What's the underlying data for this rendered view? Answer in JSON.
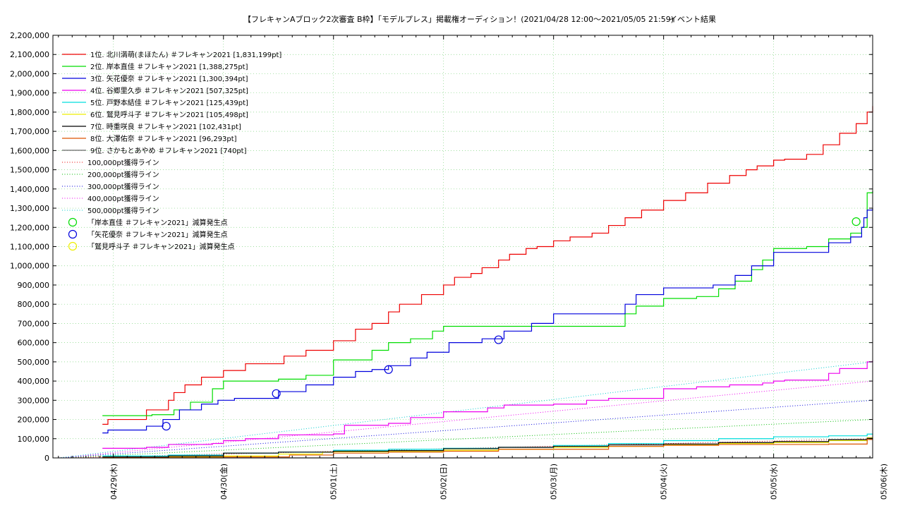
{
  "chart_data": {
    "type": "line",
    "title": "【フレキャンAブロック2次審査 B枠】「モデルプレス」掲載権オーディション！(2021/04/28 12:00〜2021/05/05 21:59)",
    "subtitle": "イベント結果",
    "xlabel": "",
    "ylabel": "",
    "ylim": [
      0,
      2200000
    ],
    "xlim": [
      -0.55,
      6.9
    ],
    "grid": true,
    "legend_position": "top-left",
    "x_ticks": [
      {
        "value": 0,
        "label": "04/29(木)"
      },
      {
        "value": 1,
        "label": "04/30(金)"
      },
      {
        "value": 2,
        "label": "05/01(土)"
      },
      {
        "value": 3,
        "label": "05/02(日)"
      },
      {
        "value": 4,
        "label": "05/03(月)"
      },
      {
        "value": 5,
        "label": "05/04(火)"
      },
      {
        "value": 6,
        "label": "05/05(水)"
      },
      {
        "value": 7,
        "label": "05/06(木)"
      }
    ],
    "y_ticks": [
      {
        "value": 0,
        "label": "0"
      },
      {
        "value": 100000,
        "label": "100,000"
      },
      {
        "value": 200000,
        "label": "200,000"
      },
      {
        "value": 300000,
        "label": "300,000"
      },
      {
        "value": 400000,
        "label": "400,000"
      },
      {
        "value": 500000,
        "label": "500,000"
      },
      {
        "value": 600000,
        "label": "600,000"
      },
      {
        "value": 700000,
        "label": "700,000"
      },
      {
        "value": 800000,
        "label": "800,000"
      },
      {
        "value": 900000,
        "label": "900,000"
      },
      {
        "value": 1000000,
        "label": "1,000,000"
      },
      {
        "value": 1100000,
        "label": "1,100,000"
      },
      {
        "value": 1200000,
        "label": "1,200,000"
      },
      {
        "value": 1300000,
        "label": "1,300,000"
      },
      {
        "value": 1400000,
        "label": "1,400,000"
      },
      {
        "value": 1500000,
        "label": "1,500,000"
      },
      {
        "value": 1600000,
        "label": "1,600,000"
      },
      {
        "value": 1700000,
        "label": "1,700,000"
      },
      {
        "value": 1800000,
        "label": "1,800,000"
      },
      {
        "value": 1900000,
        "label": "1,900,000"
      },
      {
        "value": 2000000,
        "label": "2,000,000"
      },
      {
        "value": 2100000,
        "label": "2,100,000"
      },
      {
        "value": 2200000,
        "label": "2,200,000"
      }
    ],
    "series": [
      {
        "name": "1位. 北川満萌(まほたん) ＃フレキャン2021 [1,831,199pt]",
        "color": "#ee0000",
        "style": "step",
        "x": [
          -0.1,
          -0.05,
          0.3,
          0.5,
          0.55,
          0.65,
          0.8,
          1.0,
          1.2,
          1.55,
          1.75,
          2.0,
          2.2,
          2.35,
          2.5,
          2.6,
          2.8,
          3.0,
          3.1,
          3.25,
          3.35,
          3.5,
          3.6,
          3.75,
          3.85,
          4.0,
          4.15,
          4.35,
          4.5,
          4.65,
          4.8,
          5.0,
          5.2,
          5.4,
          5.6,
          5.75,
          5.85,
          6.0,
          6.1,
          6.3,
          6.45,
          6.6,
          6.75,
          6.85,
          6.9
        ],
        "y": [
          175000,
          200000,
          250000,
          300000,
          340000,
          380000,
          420000,
          455000,
          490000,
          530000,
          560000,
          610000,
          670000,
          700000,
          760000,
          800000,
          850000,
          900000,
          940000,
          960000,
          990000,
          1030000,
          1060000,
          1090000,
          1100000,
          1130000,
          1150000,
          1170000,
          1210000,
          1250000,
          1290000,
          1340000,
          1380000,
          1430000,
          1470000,
          1500000,
          1520000,
          1550000,
          1555000,
          1580000,
          1630000,
          1690000,
          1740000,
          1800000,
          1831199
        ]
      },
      {
        "name": "2位. 岸本直佳 ＃フレキャン2021 [1,388,275pt]",
        "color": "#00dd00",
        "style": "step",
        "x": [
          -0.1,
          0.35,
          0.55,
          0.7,
          0.9,
          1.0,
          1.5,
          1.75,
          2.0,
          2.35,
          2.5,
          2.7,
          2.9,
          3.0,
          3.5,
          4.0,
          4.5,
          4.65,
          4.75,
          5.0,
          5.3,
          5.5,
          5.65,
          5.8,
          5.9,
          6.0,
          6.3,
          6.5,
          6.7,
          6.8,
          6.85,
          6.9
        ],
        "y": [
          220000,
          225000,
          250000,
          290000,
          360000,
          400000,
          410000,
          430000,
          510000,
          560000,
          600000,
          620000,
          660000,
          685000,
          685000,
          685000,
          685000,
          750000,
          790000,
          830000,
          840000,
          880000,
          920000,
          980000,
          1030000,
          1090000,
          1100000,
          1140000,
          1170000,
          1200000,
          1380000,
          1388275
        ]
      },
      {
        "name": "3位. 矢花優奈 ＃フレキャン2021 [1,300,394pt]",
        "color": "#0000dd",
        "style": "step",
        "x": [
          -0.1,
          -0.05,
          0.3,
          0.45,
          0.6,
          0.8,
          0.95,
          1.1,
          1.5,
          1.75,
          2.0,
          2.2,
          2.35,
          2.5,
          2.7,
          2.85,
          3.05,
          3.35,
          3.55,
          3.8,
          4.0,
          4.5,
          4.65,
          4.75,
          5.0,
          5.3,
          5.45,
          5.65,
          5.8,
          6.0,
          6.3,
          6.5,
          6.7,
          6.8,
          6.82,
          6.85,
          6.9
        ],
        "y": [
          130000,
          145000,
          165000,
          200000,
          250000,
          280000,
          300000,
          310000,
          345000,
          380000,
          420000,
          450000,
          460000,
          480000,
          520000,
          550000,
          600000,
          620000,
          660000,
          700000,
          750000,
          750000,
          800000,
          850000,
          885000,
          885000,
          900000,
          950000,
          1000000,
          1070000,
          1070000,
          1120000,
          1150000,
          1200000,
          1250000,
          1290000,
          1300394
        ]
      },
      {
        "name": "4位. 谷郷里久歩 ＃フレキャン2021 [507,325pt]",
        "color": "#ee00ee",
        "style": "step",
        "x": [
          -0.1,
          0.3,
          0.5,
          0.9,
          1.0,
          1.2,
          1.5,
          2.0,
          2.1,
          2.5,
          2.7,
          3.0,
          3.4,
          3.55,
          4.0,
          4.3,
          4.5,
          5.0,
          5.3,
          5.6,
          5.9,
          6.0,
          6.1,
          6.5,
          6.6,
          6.85,
          6.9
        ],
        "y": [
          50000,
          55000,
          70000,
          75000,
          90000,
          100000,
          120000,
          125000,
          170000,
          180000,
          210000,
          240000,
          260000,
          275000,
          280000,
          300000,
          310000,
          360000,
          370000,
          380000,
          390000,
          400000,
          405000,
          440000,
          465000,
          500000,
          507325
        ]
      },
      {
        "name": "5位. 戸野本結佳 ＃フレキャン2021 [125,439pt]",
        "color": "#00dddd",
        "style": "step",
        "x": [
          -0.1,
          0.5,
          1.0,
          1.5,
          2.0,
          2.5,
          3.0,
          3.5,
          4.0,
          4.5,
          5.0,
          5.5,
          6.0,
          6.5,
          6.85,
          6.9
        ],
        "y": [
          10000,
          15000,
          25000,
          30000,
          40000,
          45000,
          50000,
          55000,
          65000,
          75000,
          90000,
          100000,
          110000,
          115000,
          124000,
          125439
        ]
      },
      {
        "name": "6位. 鷲見呼斗子 ＃フレキャン2021 [105,498pt]",
        "color": "#eeee00",
        "style": "step",
        "x": [
          -0.1,
          0.5,
          1.0,
          1.5,
          1.9,
          2.0,
          2.5,
          3.0,
          3.5,
          4.0,
          4.5,
          5.0,
          5.5,
          6.0,
          6.5,
          6.85,
          6.9
        ],
        "y": [
          0,
          5000,
          10000,
          20000,
          30000,
          32000,
          33000,
          40000,
          45000,
          55000,
          60000,
          70000,
          75000,
          80000,
          90000,
          105000,
          105498
        ]
      },
      {
        "name": "7位. 時重咲良 ＃フレキャン2021 [102,431pt]",
        "color": "#000000",
        "style": "step",
        "x": [
          -0.1,
          0.5,
          1.0,
          1.5,
          2.0,
          2.5,
          3.0,
          3.5,
          4.0,
          4.5,
          5.0,
          5.5,
          6.0,
          6.5,
          6.85,
          6.9
        ],
        "y": [
          5000,
          10000,
          25000,
          30000,
          35000,
          38000,
          48000,
          55000,
          60000,
          68000,
          72000,
          80000,
          85000,
          95000,
          102000,
          102431
        ]
      },
      {
        "name": "8位. 大澤佑奈 ＃フレキャン2021 [96,293pt]",
        "color": "#dd5500",
        "style": "step",
        "x": [
          -0.1,
          0.5,
          1.0,
          1.6,
          2.0,
          2.5,
          3.0,
          3.5,
          4.0,
          4.5,
          5.0,
          5.5,
          6.0,
          6.5,
          6.85,
          6.9
        ],
        "y": [
          2000,
          3000,
          5000,
          15000,
          25000,
          30000,
          35000,
          45000,
          45000,
          60000,
          65000,
          70000,
          70000,
          72000,
          96000,
          96293
        ]
      },
      {
        "name": "9位. さかもとあやめ ＃フレキャン2021 [740pt]",
        "color": "#666666",
        "style": "step",
        "x": [
          -0.1,
          6.9
        ],
        "y": [
          0,
          740
        ]
      },
      {
        "name": "100,000pt獲得ライン",
        "color": "#ee0000",
        "style": "dotted",
        "x": [
          -0.5,
          6.9
        ],
        "y": [
          0,
          100000
        ]
      },
      {
        "name": "200,000pt獲得ライン",
        "color": "#00bb00",
        "style": "dotted",
        "x": [
          -0.5,
          6.9
        ],
        "y": [
          0,
          200000
        ]
      },
      {
        "name": "300,000pt獲得ライン",
        "color": "#0000dd",
        "style": "dotted",
        "x": [
          -0.5,
          6.9
        ],
        "y": [
          0,
          300000
        ]
      },
      {
        "name": "400,000pt獲得ライン",
        "color": "#ee00ee",
        "style": "dotted",
        "x": [
          -0.5,
          6.9
        ],
        "y": [
          0,
          400000
        ]
      },
      {
        "name": "500,000pt獲得ライン",
        "color": "#00cccc",
        "style": "dotted",
        "x": [
          -0.5,
          6.9
        ],
        "y": [
          0,
          500000
        ]
      }
    ],
    "markers": [
      {
        "name": "「岸本直佳 ＃フレキャン2021」減算発生点",
        "color": "#00dd00",
        "points": [
          {
            "x": 6.75,
            "y": 1230000
          }
        ]
      },
      {
        "name": "「矢花優奈 ＃フレキャン2021」減算発生点",
        "color": "#0000dd",
        "points": [
          {
            "x": 0.48,
            "y": 165000
          },
          {
            "x": 1.48,
            "y": 335000
          },
          {
            "x": 2.5,
            "y": 460000
          },
          {
            "x": 3.5,
            "y": 615000
          }
        ]
      },
      {
        "name": "「鷲見呼斗子 ＃フレキャン2021」減算発生点",
        "color": "#eeee00",
        "points": []
      }
    ]
  }
}
